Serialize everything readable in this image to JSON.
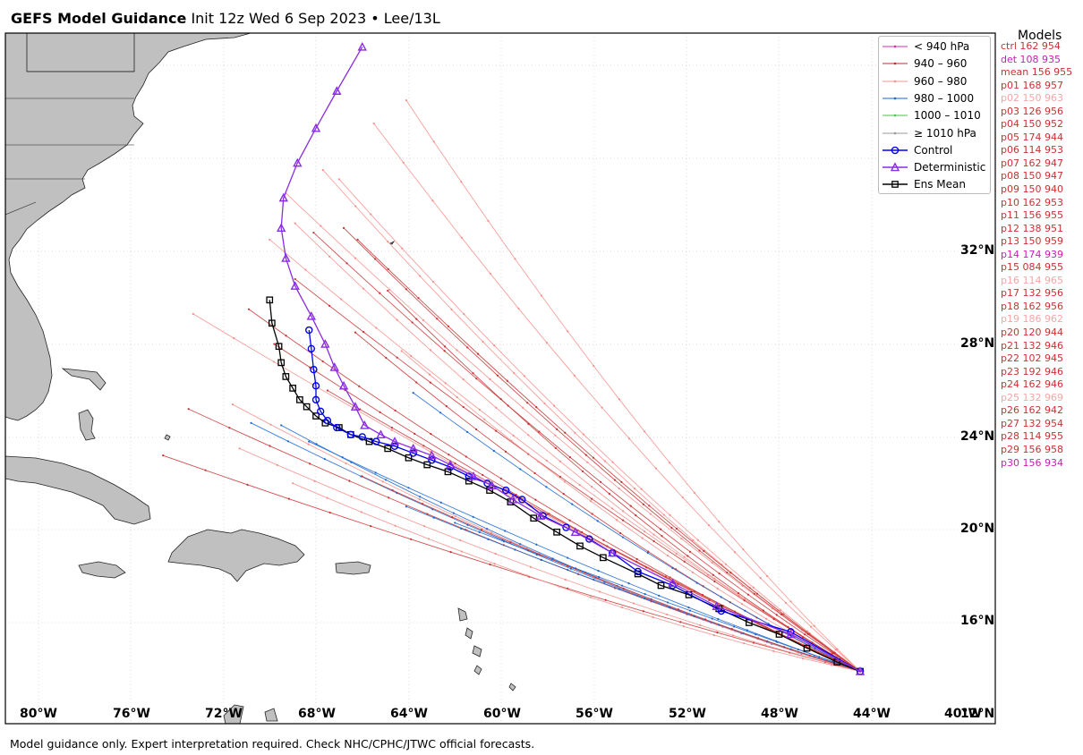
{
  "header": {
    "title_bold": "GEFS Model Guidance",
    "title_rest": "Init 12z Wed 6 Sep 2023 • Lee/13L"
  },
  "footer": {
    "disclaimer": "Model guidance only. Expert interpretation required. Check NHC/CPHC/JTWC official forecasts."
  },
  "axes": {
    "lat_labels": [
      "32°N",
      "28°N",
      "24°N",
      "20°N",
      "16°N",
      "12°N"
    ],
    "lon_labels": [
      "80°W",
      "76°W",
      "72°W",
      "68°W",
      "64°W",
      "60°W",
      "56°W",
      "52°W",
      "48°W",
      "44°W",
      "40°W"
    ]
  },
  "legend": {
    "items": [
      {
        "label": "< 940 hPa",
        "color": "#d62cb4",
        "style": "pressure"
      },
      {
        "label": "940 – 960",
        "color": "#b5302e",
        "style": "pressure"
      },
      {
        "label": "960 – 980",
        "color": "#f4908c",
        "style": "pressure"
      },
      {
        "label": "980 – 1000",
        "color": "#1a66d1",
        "style": "pressure"
      },
      {
        "label": "1000 – 1010",
        "color": "#4cc14c",
        "style": "pressure"
      },
      {
        "label": "≥ 1010 hPa",
        "color": "#999999",
        "style": "pressure"
      },
      {
        "label": "Control",
        "color": "#0000ee",
        "style": "circle"
      },
      {
        "label": "Deterministic",
        "color": "#8b2be2",
        "style": "triangle"
      },
      {
        "label": "Ens Mean",
        "color": "#000000",
        "style": "square"
      }
    ]
  },
  "models": {
    "title": "Models",
    "entries": [
      {
        "text": "ctrl 162 954",
        "color": "#c83232"
      },
      {
        "text": "det 108 935",
        "color": "#c81eb4"
      },
      {
        "text": "mean 156 955",
        "color": "#c83232"
      },
      {
        "text": "p01 168 957",
        "color": "#c83232"
      },
      {
        "text": "p02 150 963",
        "color": "#f4a6a6"
      },
      {
        "text": "p03 126 956",
        "color": "#c83232"
      },
      {
        "text": "p04 150 952",
        "color": "#c83232"
      },
      {
        "text": "p05 174 944",
        "color": "#c83232"
      },
      {
        "text": "p06 114 953",
        "color": "#c83232"
      },
      {
        "text": "p07 162 947",
        "color": "#c83232"
      },
      {
        "text": "p08 150 947",
        "color": "#c83232"
      },
      {
        "text": "p09 150 940",
        "color": "#c83232"
      },
      {
        "text": "p10 162 953",
        "color": "#c83232"
      },
      {
        "text": "p11 156 955",
        "color": "#c83232"
      },
      {
        "text": "p12 138 951",
        "color": "#c83232"
      },
      {
        "text": "p13 150 959",
        "color": "#c83232"
      },
      {
        "text": "p14 174 939",
        "color": "#c81eb4"
      },
      {
        "text": "p15 084 955",
        "color": "#c83232"
      },
      {
        "text": "p16 114 965",
        "color": "#f4a6a6"
      },
      {
        "text": "p17 132 956",
        "color": "#c83232"
      },
      {
        "text": "p18 162 956",
        "color": "#c83232"
      },
      {
        "text": "p19 186 962",
        "color": "#f4a6a6"
      },
      {
        "text": "p20 120 944",
        "color": "#c83232"
      },
      {
        "text": "p21 132 946",
        "color": "#c83232"
      },
      {
        "text": "p22 102 945",
        "color": "#c83232"
      },
      {
        "text": "p23 192 946",
        "color": "#c83232"
      },
      {
        "text": "p24 162 946",
        "color": "#c83232"
      },
      {
        "text": "p25 132 969",
        "color": "#f4a6a6"
      },
      {
        "text": "p26 162 942",
        "color": "#c83232"
      },
      {
        "text": "p27 132 954",
        "color": "#c83232"
      },
      {
        "text": "p28 114 955",
        "color": "#c83232"
      },
      {
        "text": "p29 156 958",
        "color": "#c83232"
      },
      {
        "text": "p30 156 934",
        "color": "#c81eb4"
      }
    ]
  },
  "colors": {
    "land": "#c0c0c0",
    "coast": "#222222",
    "grid": "#cccccc"
  },
  "tracks": {
    "start": [
      -44.5,
      13.9
    ],
    "ensemble_ends": [
      {
        "lon": -69.5,
        "lat": 24.5,
        "color": "#1a66d1"
      },
      {
        "lon": -70.8,
        "lat": 24.6,
        "color": "#1a66d1"
      },
      {
        "lon": -73.5,
        "lat": 25.2,
        "color": "#c83232"
      },
      {
        "lon": -74.6,
        "lat": 23.2,
        "color": "#c83232"
      },
      {
        "lon": -73.3,
        "lat": 29.3,
        "color": "#f4908c"
      },
      {
        "lon": -71.6,
        "lat": 25.4,
        "color": "#f4908c"
      },
      {
        "lon": -70.9,
        "lat": 29.5,
        "color": "#c83232"
      },
      {
        "lon": -69.8,
        "lat": 28.0,
        "color": "#c83232"
      },
      {
        "lon": -70.0,
        "lat": 32.5,
        "color": "#f4908c"
      },
      {
        "lon": -69.3,
        "lat": 34.5,
        "color": "#f4908c"
      },
      {
        "lon": -68.9,
        "lat": 33.2,
        "color": "#f4908c"
      },
      {
        "lon": -67.7,
        "lat": 35.5,
        "color": "#f4908c"
      },
      {
        "lon": -67.0,
        "lat": 35.1,
        "color": "#f4908c"
      },
      {
        "lon": -66.8,
        "lat": 33.0,
        "color": "#c83232"
      },
      {
        "lon": -66.2,
        "lat": 32.5,
        "color": "#c83232"
      },
      {
        "lon": -64.9,
        "lat": 30.3,
        "color": "#c83232"
      },
      {
        "lon": -64.1,
        "lat": 38.5,
        "color": "#f4908c"
      },
      {
        "lon": -65.5,
        "lat": 37.5,
        "color": "#f4908c"
      },
      {
        "lon": -68.1,
        "lat": 32.8,
        "color": "#c83232"
      },
      {
        "lon": -68.9,
        "lat": 30.8,
        "color": "#c83232"
      },
      {
        "lon": -66.3,
        "lat": 28.5,
        "color": "#c83232"
      },
      {
        "lon": -64.3,
        "lat": 27.7,
        "color": "#f4908c"
      },
      {
        "lon": -63.8,
        "lat": 25.9,
        "color": "#1a66d1"
      },
      {
        "lon": -64.1,
        "lat": 21.0,
        "color": "#1a66d1"
      },
      {
        "lon": -62.0,
        "lat": 20.3,
        "color": "#1a66d1"
      },
      {
        "lon": -69.0,
        "lat": 22.0,
        "color": "#f4908c"
      },
      {
        "lon": -71.3,
        "lat": 23.5,
        "color": "#f4908c"
      },
      {
        "lon": -66.0,
        "lat": 22.3,
        "color": "#c83232"
      },
      {
        "lon": -68.3,
        "lat": 23.8,
        "color": "#1a66d1"
      },
      {
        "lon": -67.5,
        "lat": 26.0,
        "color": "#c83232"
      }
    ],
    "control": [
      [
        -44.5,
        13.9
      ],
      [
        -47.5,
        15.6
      ],
      [
        -50.5,
        16.5
      ],
      [
        -52.6,
        17.6
      ],
      [
        -54.1,
        18.2
      ],
      [
        -55.2,
        19.0
      ],
      [
        -56.2,
        19.6
      ],
      [
        -57.2,
        20.1
      ],
      [
        -58.2,
        20.6
      ],
      [
        -59.1,
        21.3
      ],
      [
        -59.8,
        21.7
      ],
      [
        -60.6,
        22.0
      ],
      [
        -61.4,
        22.3
      ],
      [
        -62.2,
        22.7
      ],
      [
        -63.0,
        23.0
      ],
      [
        -63.8,
        23.3
      ],
      [
        -64.6,
        23.6
      ],
      [
        -65.4,
        23.8
      ],
      [
        -66.0,
        24.0
      ],
      [
        -66.5,
        24.1
      ],
      [
        -67.1,
        24.4
      ],
      [
        -67.5,
        24.7
      ],
      [
        -67.8,
        25.1
      ],
      [
        -68.0,
        25.6
      ],
      [
        -68.0,
        26.2
      ],
      [
        -68.1,
        26.9
      ],
      [
        -68.2,
        27.8
      ],
      [
        -68.3,
        28.6
      ]
    ],
    "deterministic": [
      [
        -44.5,
        13.9
      ],
      [
        -47.5,
        15.5
      ],
      [
        -50.7,
        16.7
      ],
      [
        -52.6,
        17.7
      ],
      [
        -55.2,
        19.0
      ],
      [
        -56.8,
        19.9
      ],
      [
        -58.3,
        20.6
      ],
      [
        -59.5,
        21.3
      ],
      [
        -60.4,
        21.9
      ],
      [
        -61.2,
        22.3
      ],
      [
        -62.2,
        22.8
      ],
      [
        -63.0,
        23.2
      ],
      [
        -63.8,
        23.5
      ],
      [
        -64.6,
        23.8
      ],
      [
        -65.2,
        24.1
      ],
      [
        -65.9,
        24.5
      ],
      [
        -66.3,
        25.3
      ],
      [
        -66.8,
        26.2
      ],
      [
        -67.2,
        27.0
      ],
      [
        -67.6,
        28.0
      ],
      [
        -68.2,
        29.2
      ],
      [
        -68.9,
        30.5
      ],
      [
        -69.3,
        31.7
      ],
      [
        -69.5,
        33.0
      ],
      [
        -69.4,
        34.3
      ],
      [
        -68.8,
        35.8
      ],
      [
        -68.0,
        37.3
      ],
      [
        -67.1,
        38.9
      ],
      [
        -66.0,
        40.8
      ]
    ],
    "mean": [
      [
        -44.5,
        13.9
      ],
      [
        -45.5,
        14.3
      ],
      [
        -46.8,
        14.9
      ],
      [
        -48.0,
        15.5
      ],
      [
        -49.3,
        16.0
      ],
      [
        -50.6,
        16.6
      ],
      [
        -51.9,
        17.2
      ],
      [
        -53.1,
        17.6
      ],
      [
        -54.1,
        18.1
      ],
      [
        -55.6,
        18.8
      ],
      [
        -56.6,
        19.3
      ],
      [
        -57.6,
        19.9
      ],
      [
        -58.6,
        20.5
      ],
      [
        -59.6,
        21.2
      ],
      [
        -60.5,
        21.7
      ],
      [
        -61.4,
        22.1
      ],
      [
        -62.3,
        22.5
      ],
      [
        -63.2,
        22.8
      ],
      [
        -64.0,
        23.1
      ],
      [
        -64.9,
        23.5
      ],
      [
        -65.7,
        23.8
      ],
      [
        -66.5,
        24.1
      ],
      [
        -67.0,
        24.4
      ],
      [
        -67.6,
        24.6
      ],
      [
        -68.0,
        24.9
      ],
      [
        -68.4,
        25.3
      ],
      [
        -68.7,
        25.6
      ],
      [
        -69.0,
        26.1
      ],
      [
        -69.3,
        26.6
      ],
      [
        -69.5,
        27.2
      ],
      [
        -69.6,
        27.9
      ],
      [
        -69.9,
        28.9
      ],
      [
        -70.0,
        29.9
      ]
    ]
  }
}
